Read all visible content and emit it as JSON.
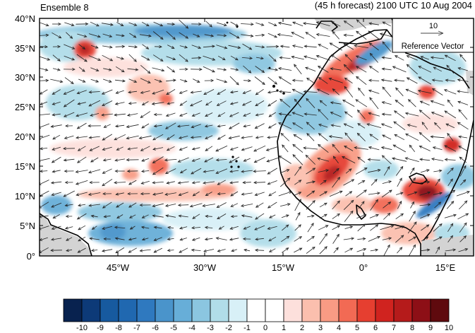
{
  "header": {
    "left_title": "Ensemble 8",
    "right_title": "(45 h forecast) 2100 UTC 10 Aug 2004"
  },
  "map": {
    "lon_ticks": [
      "45°W",
      "30°W",
      "15°W",
      "0°",
      "15°E"
    ],
    "lat_ticks": [
      "40°N",
      "35°N",
      "30°N",
      "25°N",
      "20°N",
      "15°N",
      "10°N",
      "5°N",
      "0°"
    ],
    "ocean_color": "#ffffff",
    "land_mask_color": "#d3d3d3",
    "coastline_color": "#000000"
  },
  "reference_vector": {
    "magnitude_label": "10",
    "caption": "Reference Vector"
  },
  "colorbar": {
    "labels": [
      "-10",
      "-9",
      "-8",
      "-7",
      "-6",
      "-5",
      "-4",
      "-3",
      "-2",
      "-1",
      "0",
      "1",
      "2",
      "3",
      "4",
      "5",
      "6",
      "7",
      "8",
      "9",
      "10"
    ],
    "colors": [
      "#08224f",
      "#0d3a78",
      "#175a9f",
      "#2068b0",
      "#2f79bf",
      "#4a94cb",
      "#67aed8",
      "#8bc6e0",
      "#b1dde9",
      "#d8f0f7",
      "#ffffff",
      "#ffffff",
      "#fde0dc",
      "#fbbfae",
      "#f89b84",
      "#f26a54",
      "#e63f30",
      "#d0231f",
      "#b51b1b",
      "#8d0f16",
      "#5f0a0e"
    ]
  }
}
